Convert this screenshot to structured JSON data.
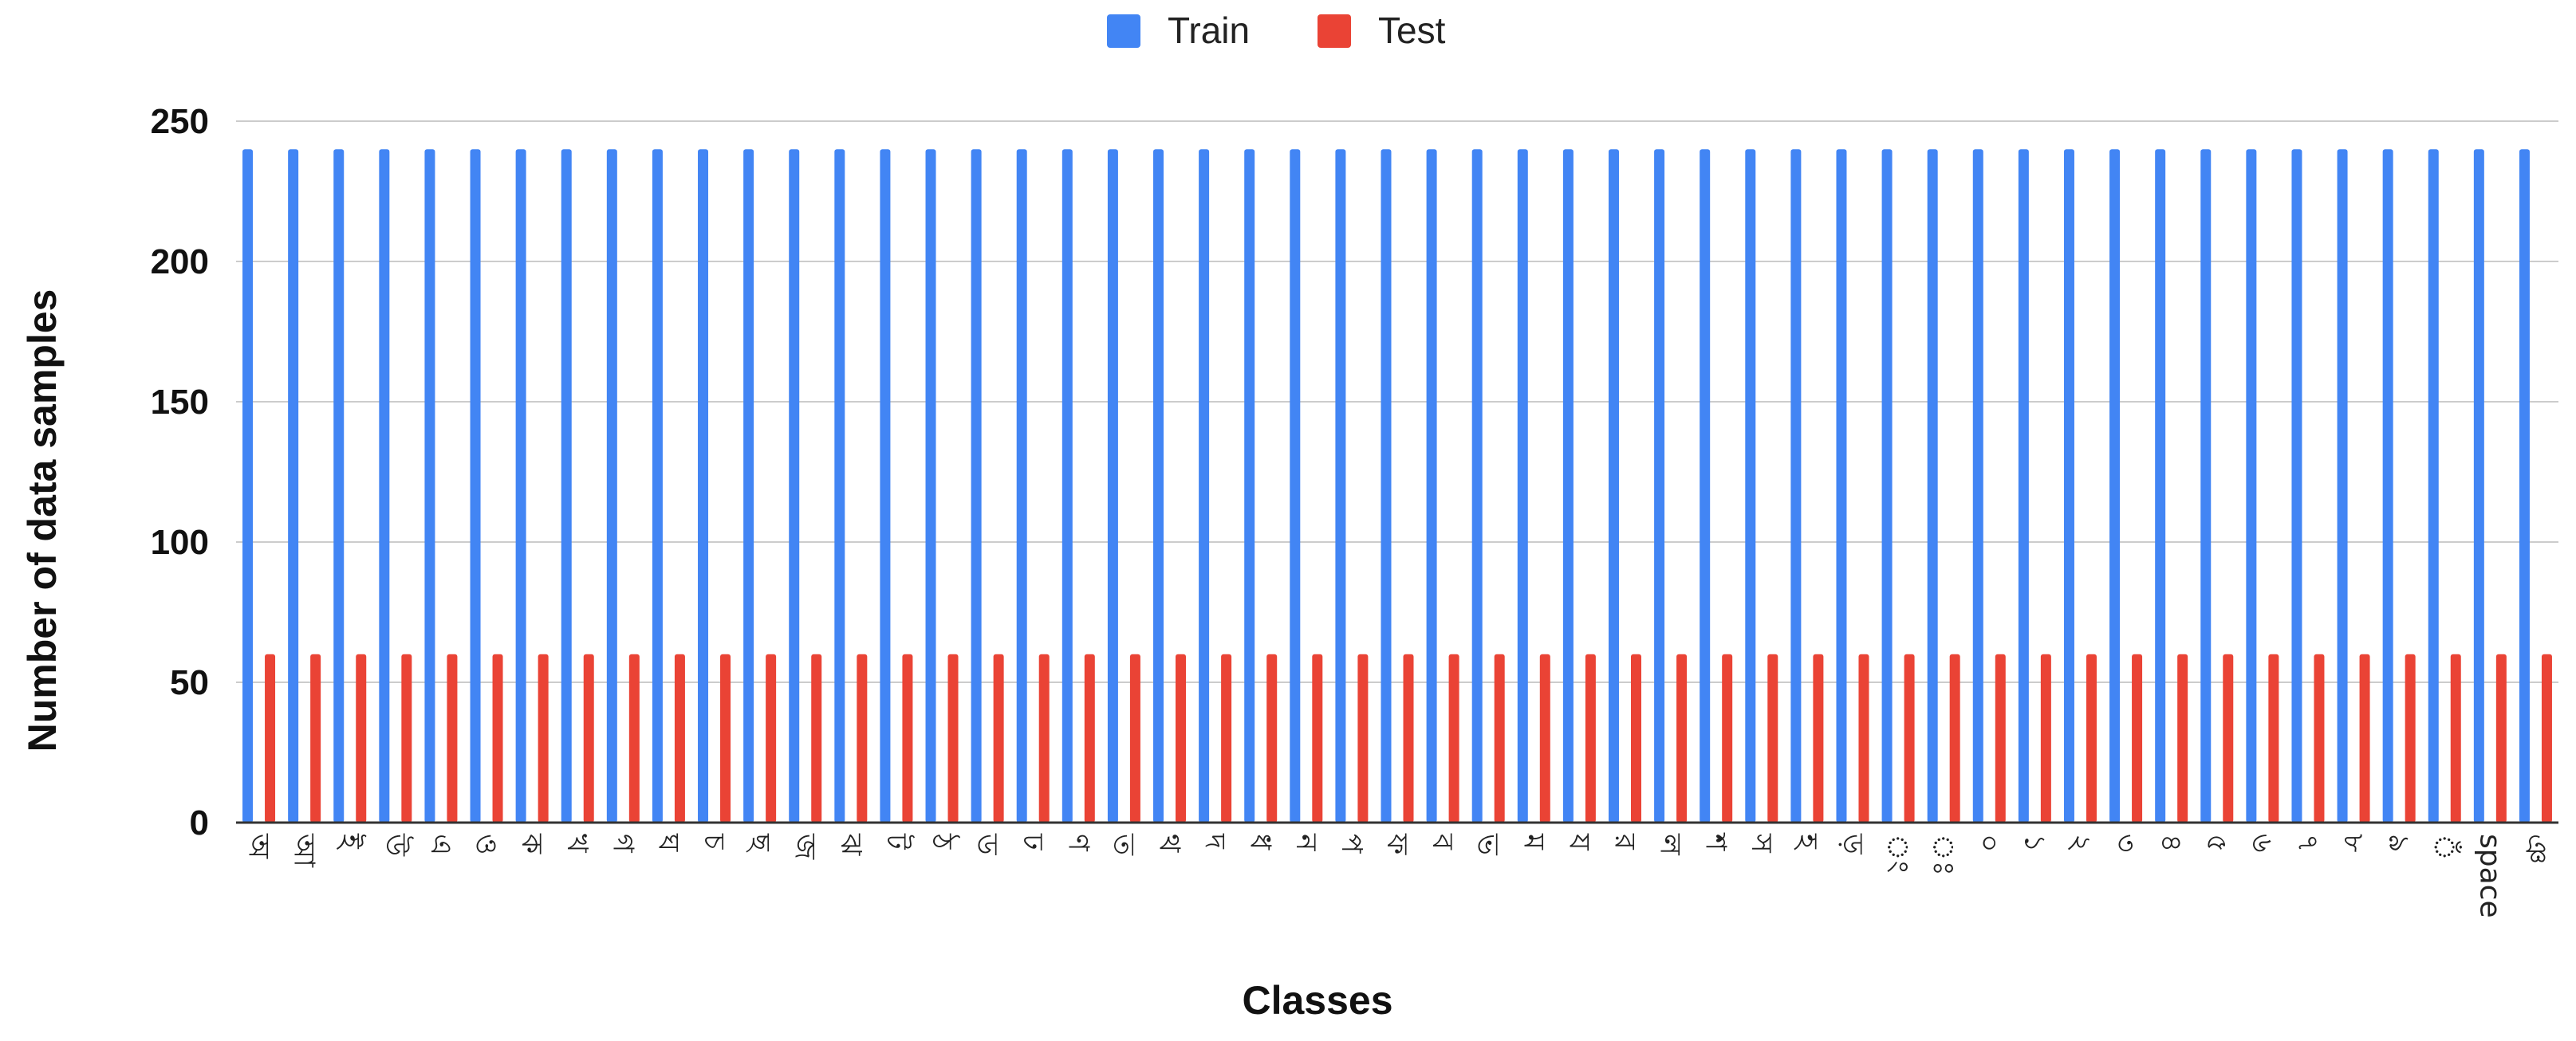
{
  "chart_data": {
    "type": "bar",
    "title": "",
    "xlabel": "Classes",
    "ylabel": "Number of data samples",
    "ylim": [
      0,
      250
    ],
    "yticks": [
      0,
      50,
      100,
      150,
      200,
      250
    ],
    "grid": true,
    "legend_position": "top-center",
    "categories": [
      "অ",
      "আ",
      "ই",
      "উ",
      "এ",
      "ও",
      "ক",
      "খ",
      "গ",
      "ঘ",
      "চ",
      "ছ",
      "জ",
      "ঝ",
      "ট",
      "ঠ",
      "ড",
      "ঢ",
      "ণ",
      "ত",
      "থ",
      "দ",
      "ধ",
      "ন",
      "প",
      "ফ",
      "ব",
      "ভ",
      "ম",
      "য",
      "র",
      "ল",
      "শ",
      "স",
      "হ",
      "ড়",
      "ং",
      "ঃ",
      "০",
      "১",
      "২",
      "৩",
      "৪",
      "৫",
      "৬",
      "৭",
      "৮",
      "৯",
      "ঁ",
      "space",
      "ঞ"
    ],
    "series": [
      {
        "name": "Train",
        "color": "#4285F4",
        "values": [
          240,
          240,
          240,
          240,
          240,
          240,
          240,
          240,
          240,
          240,
          240,
          240,
          240,
          240,
          240,
          240,
          240,
          240,
          240,
          240,
          240,
          240,
          240,
          240,
          240,
          240,
          240,
          240,
          240,
          240,
          240,
          240,
          240,
          240,
          240,
          240,
          240,
          240,
          240,
          240,
          240,
          240,
          240,
          240,
          240,
          240,
          240,
          240,
          240,
          240,
          240
        ]
      },
      {
        "name": "Test",
        "color": "#EA4335",
        "values": [
          60,
          60,
          60,
          60,
          60,
          60,
          60,
          60,
          60,
          60,
          60,
          60,
          60,
          60,
          60,
          60,
          60,
          60,
          60,
          60,
          60,
          60,
          60,
          60,
          60,
          60,
          60,
          60,
          60,
          60,
          60,
          60,
          60,
          60,
          60,
          60,
          60,
          60,
          60,
          60,
          60,
          60,
          60,
          60,
          60,
          60,
          60,
          60,
          60,
          60,
          60
        ]
      }
    ]
  }
}
